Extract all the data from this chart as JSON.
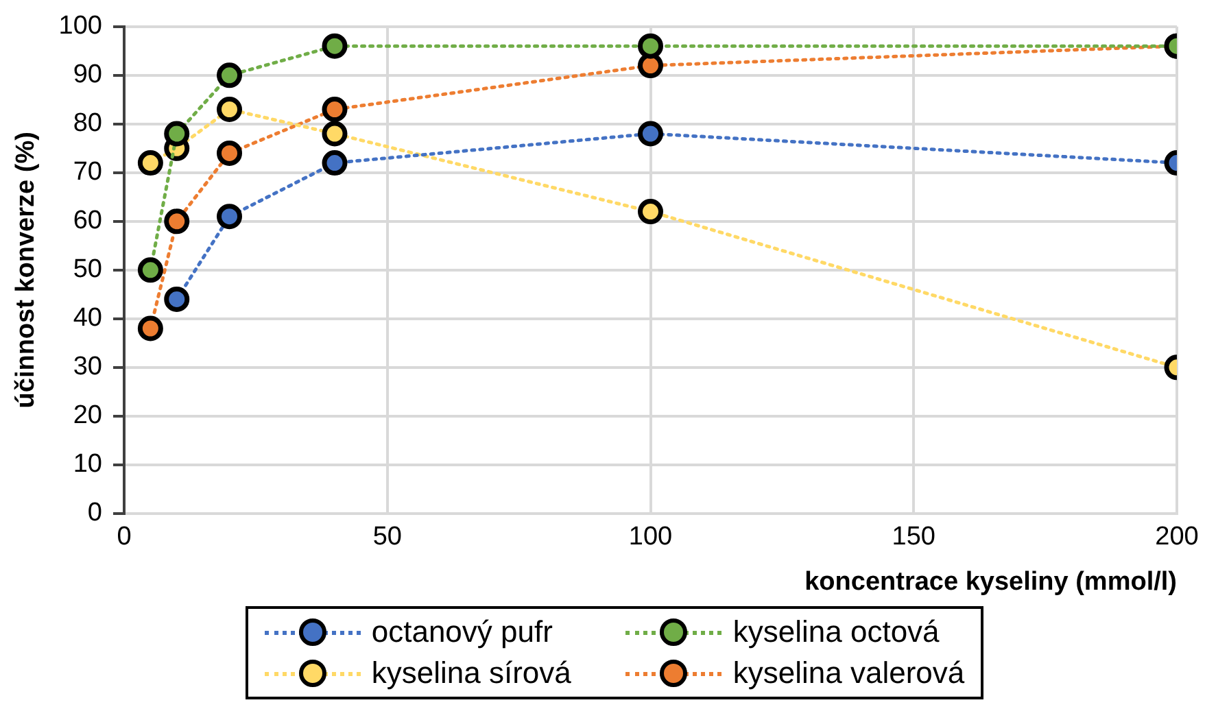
{
  "chart_data": {
    "type": "line",
    "xlabel": "koncentrace kyseliny (mmol/l)",
    "ylabel": "účinnost konverze (%)",
    "x": [
      5,
      10,
      20,
      40,
      100,
      200
    ],
    "series": [
      {
        "name": "octanový pufr",
        "color": "#4472c4",
        "values": [
          null,
          44,
          61,
          72,
          78,
          72
        ]
      },
      {
        "name": "kyselina octová",
        "color": "#70ad47",
        "values": [
          50,
          78,
          90,
          96,
          96,
          96
        ]
      },
      {
        "name": "kyselina sírová",
        "color": "#ffd966",
        "values": [
          72,
          75,
          83,
          78,
          62,
          30
        ]
      },
      {
        "name": "kyselina valerová",
        "color": "#ed7d31",
        "values": [
          38,
          60,
          74,
          83,
          92,
          96
        ]
      }
    ],
    "xlim": [
      0,
      200
    ],
    "xticks": [
      0,
      50,
      100,
      150,
      200
    ],
    "ylim": [
      0,
      100
    ],
    "yticks": [
      0,
      10,
      20,
      30,
      40,
      50,
      60,
      70,
      80,
      90,
      100
    ],
    "grid": true,
    "legend": "bottom",
    "marker": "circle",
    "line_style": "dotted"
  }
}
